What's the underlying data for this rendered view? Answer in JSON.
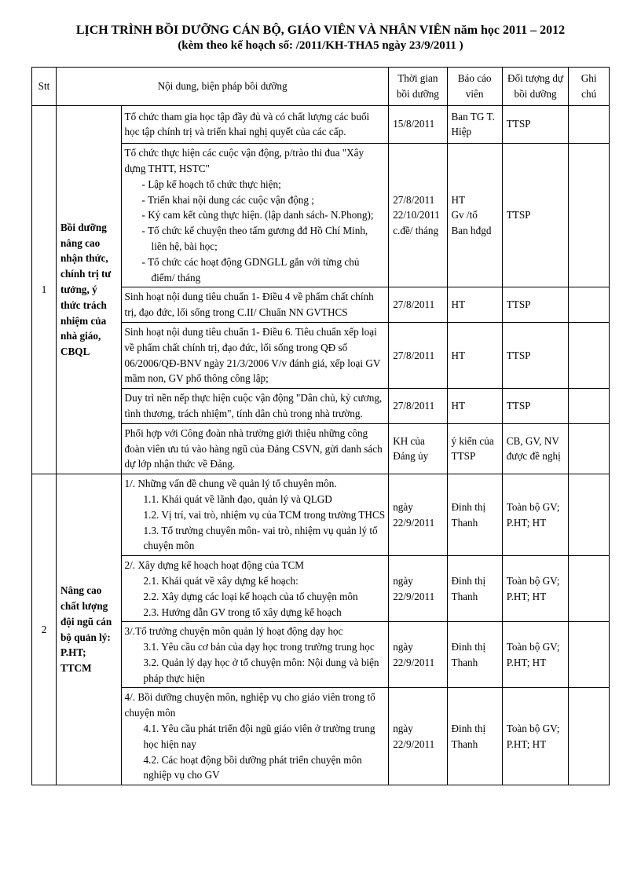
{
  "header": {
    "line1": "LỊCH TRÌNH BỒI DƯỠNG CÁN BỘ, GIÁO VIÊN VÀ NHÂN VIÊN năm học 2011 – 2012",
    "line2": "(kèm theo kế hoạch số:        /2011/KH-THA5 ngày 23/9/2011 )"
  },
  "columns": {
    "stt": "Stt",
    "content": "Nội dung, biện pháp bồi dưỡng",
    "time": "Thời gian bồi dưỡng",
    "reporter": "Báo cáo viên",
    "target": "Đối tượng dự bồi dưỡng",
    "note": "Ghi chú"
  },
  "group1": {
    "stt": "1",
    "section": "Bồi dưỡng nâng cao nhận thức, chính trị tư tưởng, ý thức trách nhiệm của nhà giáo, CBQL",
    "rows": [
      {
        "content_lines": [
          "    Tổ chức tham gia học tập đầy đủ và có chất lượng các buổi học tập chính trị và triển khai nghị quyết của các cấp."
        ],
        "time": "15/8/2011",
        "reporter": "Ban TG T. Hiệp",
        "target": "TTSP"
      },
      {
        "content_lines": [
          "    Tổ chức thực hiện các cuộc vận động, p/trào thi đua \"Xây dựng THTT, HSTC\"",
          "-  Lập kế hoạch tổ chức thực hiện;",
          "-  Triển khai nội dung các cuộc vận động ;",
          "-  Ký cam kết cùng thực hiện. (lập danh sách- N.Phong);",
          "-  Tổ chức kể chuyện theo tấm gương đđ Hồ Chí Minh, liên hệ, bài học;",
          "-  Tổ chức các hoạt động GDNGLL gắn với từng chủ điểm/ tháng"
        ],
        "time_lines": [
          "27/8/2011",
          "",
          "22/10/2011",
          "c.đề/ tháng"
        ],
        "reporter_lines": [
          "HT",
          "",
          "Gv /tổ",
          "Ban hđgd"
        ],
        "target": "TTSP"
      },
      {
        "content_lines": [
          "   Sinh hoạt nội dung tiêu chuẩn 1- Điều 4 về phẩm chất chính trị, đạo đức, lối sống trong C.II/ Chuẩn NN GVTHCS"
        ],
        "time": "27/8/2011",
        "reporter": "HT",
        "target": "TTSP"
      },
      {
        "content_lines": [
          "   Sinh hoạt nội dung tiêu chuẩn 1- Điều 6. Tiêu chuẩn xếp loại về phẩm chất chính trị, đạo đức, lối sống trong QĐ số 06/2006/QĐ-BNV ngày 21/3/2006 V/v đánh giá, xếp loại GV mầm non, GV phổ thông công lập;"
        ],
        "time": "27/8/2011",
        "reporter": "HT",
        "target": "TTSP"
      },
      {
        "content_lines": [
          "    Duy trì nền nếp thực hiện cuộc vận động \"Dân chủ, kỷ cương, tình thương, trách nhiệm\", tính dân chủ trong nhà trường."
        ],
        "time": "27/8/2011",
        "reporter": "HT",
        "target": "TTSP"
      },
      {
        "content_lines": [
          "    Phối hợp với Công đoàn nhà trường giới thiệu những công đoàn viên ưu tú vào hàng ngũ của Đảng CSVN, gửi danh sách dự lớp nhận thức về Đảng."
        ],
        "time": "KH của Đảng ủy",
        "reporter": "ý kiến của TTSP",
        "target": "CB, GV, NV được đề nghị"
      }
    ]
  },
  "group2": {
    "stt": "2",
    "section": "Nâng cao chất lượng đội ngũ cán bộ quản lý: P.HT; TTCM",
    "rows": [
      {
        "content_lines": [
          "1/. Những vấn đề chung về quản lý tổ chuyên môn.",
          "1.1. Khái quát về lãnh đạo, quản lý và QLGD",
          "1.2. Vị trí, vai trò, nhiệm vụ của TCM trong trường THCS",
          "1.3. Tổ trưởng chuyên môn- vai trò, nhiệm vụ quản lý tổ chuyện môn"
        ],
        "time": "ngày 22/9/2011",
        "reporter": "Đinh thị Thanh",
        "target": "Toàn bộ GV; P.HT; HT"
      },
      {
        "content_lines": [
          "2/. Xây dựng kế hoạch hoạt động của TCM",
          "2.1. Khái quát về xây dựng kế hoạch:",
          "2.2. Xây dựng các loại kế hoạch của tổ chuyện môn",
          "2.3. Hướng dẫn GV trong tổ xây dựng kế hoạch"
        ],
        "time": "ngày 22/9/2011",
        "reporter": "Đinh thị Thanh",
        "target": "Toàn bộ GV; P.HT; HT"
      },
      {
        "content_lines": [
          "3/.Tổ trưởng chuyện môn quản lý hoạt động dạy học",
          "3.1. Yêu cầu cơ bản của dạy học trong trường trung học",
          "3.2. Quản lý dạy học ở tổ chuyện môn: Nội dung và biện pháp thực hiện"
        ],
        "time": "ngày 22/9/2011",
        "reporter": "Đinh thị Thanh",
        "target": "Toàn bộ GV; P.HT; HT"
      },
      {
        "content_lines": [
          "4/. Bồi dưỡng chuyện môn, nghiệp vụ cho giáo viên trong tổ chuyện môn",
          "4.1. Yêu cầu phát triển đội ngũ giáo viên ở trường trung học hiện nay",
          "4.2. Các hoạt động bồi dưỡng phát triển chuyện môn nghiệp vụ cho GV"
        ],
        "time": "ngày 22/9/2011",
        "reporter": "Đinh thị Thanh",
        "target": "Toàn bộ GV; P.HT; HT"
      }
    ]
  }
}
